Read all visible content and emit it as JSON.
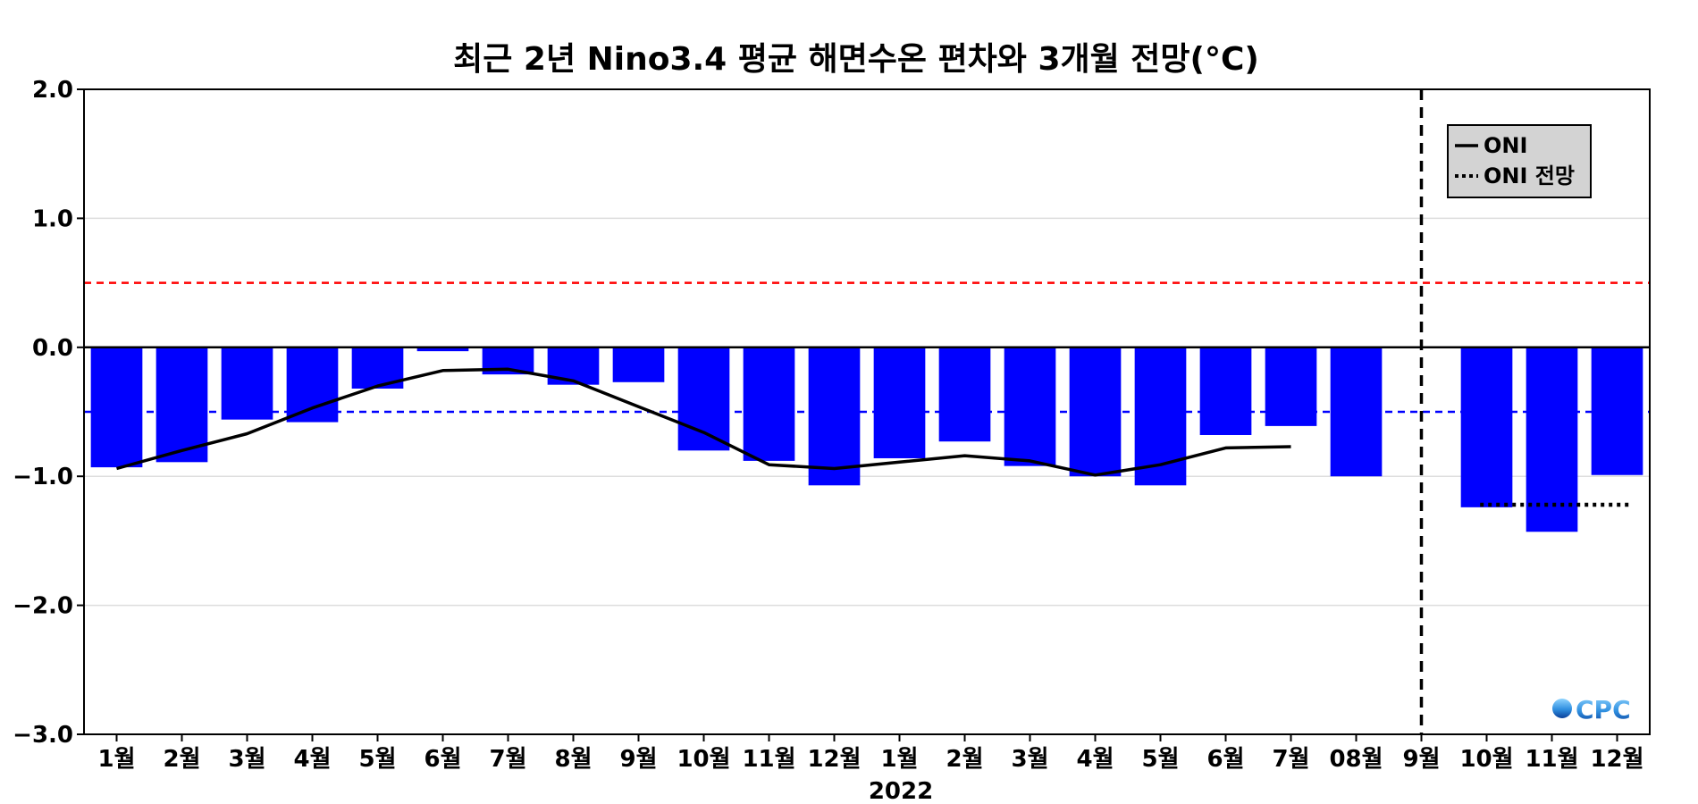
{
  "chart_data": {
    "type": "bar",
    "title": "최근 2년 Nino3.4 평균 해면수온 편차와 3개월 전망(°C)",
    "xlabel": "2022",
    "ylabel": "",
    "ylim": [
      -3.0,
      2.0
    ],
    "yticks": [
      2.0,
      1.0,
      0.0,
      -1.0,
      -2.0,
      -3.0
    ],
    "ytick_labels": [
      "2.0",
      "1.0",
      "0.0",
      "−1.0",
      "−2.0",
      "−3.0"
    ],
    "grid": true,
    "categories": [
      "1월",
      "2월",
      "3월",
      "4월",
      "5월",
      "6월",
      "7월",
      "8월",
      "9월",
      "10월",
      "11월",
      "12월",
      "1월",
      "2월",
      "3월",
      "4월",
      "5월",
      "6월",
      "7월",
      "08월",
      "9월",
      "10월",
      "11월",
      "12월"
    ],
    "series": [
      {
        "type": "bar",
        "color": "#0000ff",
        "values": [
          -0.93,
          -0.89,
          -0.56,
          -0.58,
          -0.32,
          -0.03,
          -0.21,
          -0.29,
          -0.27,
          -0.8,
          -0.88,
          -1.07,
          -0.86,
          -0.73,
          -0.92,
          -1.0,
          -1.07,
          -0.68,
          -0.61,
          -1.0,
          null,
          -1.24,
          -1.43,
          -0.99
        ]
      },
      {
        "type": "line",
        "name": "ONI",
        "style": "solid",
        "color": "#000000",
        "values": [
          -0.94,
          -0.8,
          -0.67,
          -0.47,
          -0.3,
          -0.18,
          -0.17,
          -0.26,
          -0.46,
          -0.66,
          -0.91,
          -0.94,
          -0.89,
          -0.84,
          -0.88,
          -0.99,
          -0.91,
          -0.78,
          -0.77,
          null,
          null,
          null,
          null,
          null
        ]
      },
      {
        "type": "line",
        "name": "ONI 전망",
        "style": "dotted",
        "color": "#000000",
        "values": [
          null,
          null,
          null,
          null,
          null,
          null,
          null,
          null,
          null,
          null,
          null,
          null,
          null,
          null,
          null,
          null,
          null,
          null,
          null,
          null,
          null,
          -1.22,
          -1.22,
          -1.22
        ]
      }
    ],
    "reference_lines": [
      {
        "value": 0.5,
        "color": "#ff0000",
        "style": "dashed"
      },
      {
        "value": -0.5,
        "color": "#0000ff",
        "style": "dashed"
      },
      {
        "value": 0.0,
        "color": "#000000",
        "style": "solid"
      }
    ],
    "forecast_divider_category": 20,
    "legend": {
      "placement": "top-right",
      "entries": [
        "ONI",
        "ONI 전망"
      ]
    },
    "logo_text": "CPC"
  }
}
